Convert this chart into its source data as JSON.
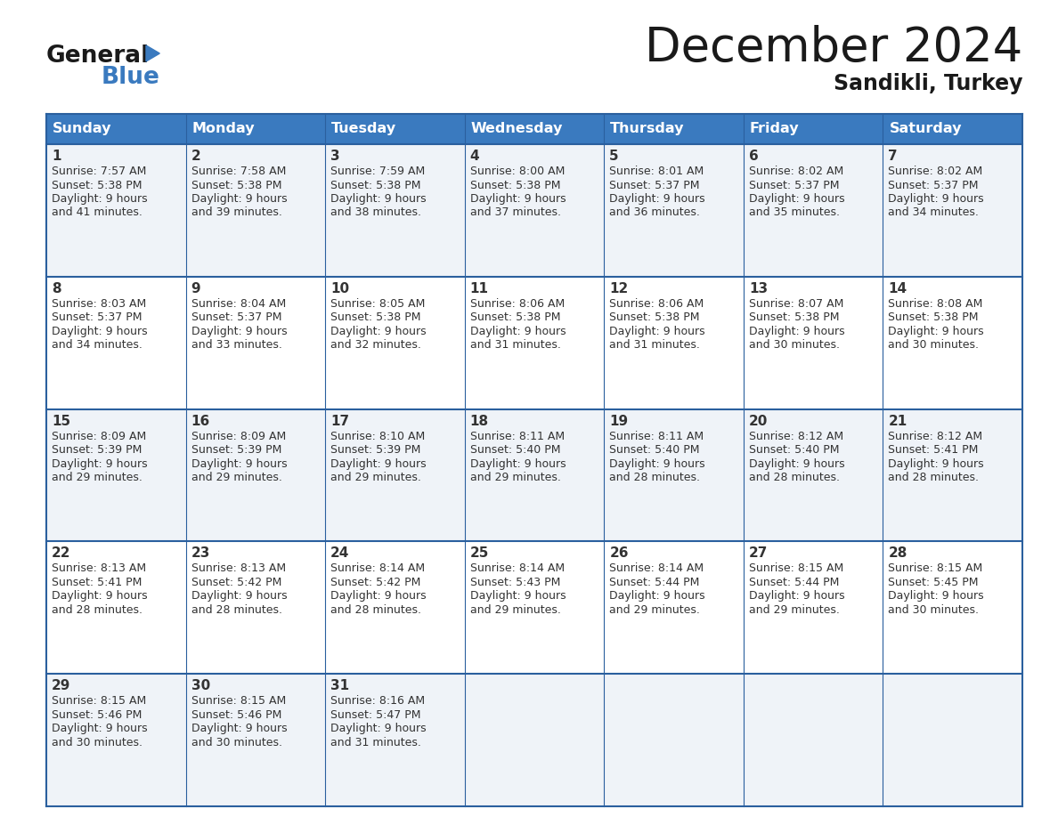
{
  "title": "December 2024",
  "subtitle": "Sandikli, Turkey",
  "header_bg_color": "#3a7abf",
  "header_text_color": "#ffffff",
  "cell_bg_light": "#eff3f8",
  "cell_bg_white": "#ffffff",
  "border_color": "#2a5f9e",
  "text_color": "#333333",
  "days_of_week": [
    "Sunday",
    "Monday",
    "Tuesday",
    "Wednesday",
    "Thursday",
    "Friday",
    "Saturday"
  ],
  "calendar": [
    [
      {
        "day": 1,
        "sunrise": "7:57 AM",
        "sunset": "5:38 PM",
        "daylight": "9 hours and 41 minutes"
      },
      {
        "day": 2,
        "sunrise": "7:58 AM",
        "sunset": "5:38 PM",
        "daylight": "9 hours and 39 minutes"
      },
      {
        "day": 3,
        "sunrise": "7:59 AM",
        "sunset": "5:38 PM",
        "daylight": "9 hours and 38 minutes"
      },
      {
        "day": 4,
        "sunrise": "8:00 AM",
        "sunset": "5:38 PM",
        "daylight": "9 hours and 37 minutes"
      },
      {
        "day": 5,
        "sunrise": "8:01 AM",
        "sunset": "5:37 PM",
        "daylight": "9 hours and 36 minutes"
      },
      {
        "day": 6,
        "sunrise": "8:02 AM",
        "sunset": "5:37 PM",
        "daylight": "9 hours and 35 minutes"
      },
      {
        "day": 7,
        "sunrise": "8:02 AM",
        "sunset": "5:37 PM",
        "daylight": "9 hours and 34 minutes"
      }
    ],
    [
      {
        "day": 8,
        "sunrise": "8:03 AM",
        "sunset": "5:37 PM",
        "daylight": "9 hours and 34 minutes"
      },
      {
        "day": 9,
        "sunrise": "8:04 AM",
        "sunset": "5:37 PM",
        "daylight": "9 hours and 33 minutes"
      },
      {
        "day": 10,
        "sunrise": "8:05 AM",
        "sunset": "5:38 PM",
        "daylight": "9 hours and 32 minutes"
      },
      {
        "day": 11,
        "sunrise": "8:06 AM",
        "sunset": "5:38 PM",
        "daylight": "9 hours and 31 minutes"
      },
      {
        "day": 12,
        "sunrise": "8:06 AM",
        "sunset": "5:38 PM",
        "daylight": "9 hours and 31 minutes"
      },
      {
        "day": 13,
        "sunrise": "8:07 AM",
        "sunset": "5:38 PM",
        "daylight": "9 hours and 30 minutes"
      },
      {
        "day": 14,
        "sunrise": "8:08 AM",
        "sunset": "5:38 PM",
        "daylight": "9 hours and 30 minutes"
      }
    ],
    [
      {
        "day": 15,
        "sunrise": "8:09 AM",
        "sunset": "5:39 PM",
        "daylight": "9 hours and 29 minutes"
      },
      {
        "day": 16,
        "sunrise": "8:09 AM",
        "sunset": "5:39 PM",
        "daylight": "9 hours and 29 minutes"
      },
      {
        "day": 17,
        "sunrise": "8:10 AM",
        "sunset": "5:39 PM",
        "daylight": "9 hours and 29 minutes"
      },
      {
        "day": 18,
        "sunrise": "8:11 AM",
        "sunset": "5:40 PM",
        "daylight": "9 hours and 29 minutes"
      },
      {
        "day": 19,
        "sunrise": "8:11 AM",
        "sunset": "5:40 PM",
        "daylight": "9 hours and 28 minutes"
      },
      {
        "day": 20,
        "sunrise": "8:12 AM",
        "sunset": "5:40 PM",
        "daylight": "9 hours and 28 minutes"
      },
      {
        "day": 21,
        "sunrise": "8:12 AM",
        "sunset": "5:41 PM",
        "daylight": "9 hours and 28 minutes"
      }
    ],
    [
      {
        "day": 22,
        "sunrise": "8:13 AM",
        "sunset": "5:41 PM",
        "daylight": "9 hours and 28 minutes"
      },
      {
        "day": 23,
        "sunrise": "8:13 AM",
        "sunset": "5:42 PM",
        "daylight": "9 hours and 28 minutes"
      },
      {
        "day": 24,
        "sunrise": "8:14 AM",
        "sunset": "5:42 PM",
        "daylight": "9 hours and 28 minutes"
      },
      {
        "day": 25,
        "sunrise": "8:14 AM",
        "sunset": "5:43 PM",
        "daylight": "9 hours and 29 minutes"
      },
      {
        "day": 26,
        "sunrise": "8:14 AM",
        "sunset": "5:44 PM",
        "daylight": "9 hours and 29 minutes"
      },
      {
        "day": 27,
        "sunrise": "8:15 AM",
        "sunset": "5:44 PM",
        "daylight": "9 hours and 29 minutes"
      },
      {
        "day": 28,
        "sunrise": "8:15 AM",
        "sunset": "5:45 PM",
        "daylight": "9 hours and 30 minutes"
      }
    ],
    [
      {
        "day": 29,
        "sunrise": "8:15 AM",
        "sunset": "5:46 PM",
        "daylight": "9 hours and 30 minutes"
      },
      {
        "day": 30,
        "sunrise": "8:15 AM",
        "sunset": "5:46 PM",
        "daylight": "9 hours and 30 minutes"
      },
      {
        "day": 31,
        "sunrise": "8:16 AM",
        "sunset": "5:47 PM",
        "daylight": "9 hours and 31 minutes"
      },
      null,
      null,
      null,
      null
    ]
  ],
  "fig_width": 11.88,
  "fig_height": 9.18,
  "dpi": 100
}
